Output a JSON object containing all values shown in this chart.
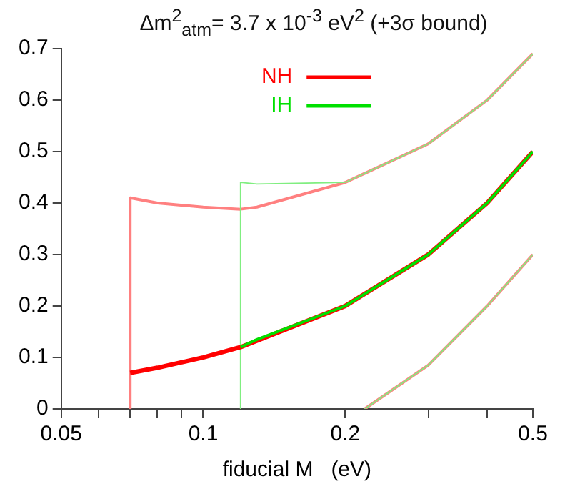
{
  "chart_data": {
    "type": "line",
    "title": "Δm$^{2}$$_{atm}$= 3.7 x 10$^{-3}$ eV$^{2}$   (+3σ bound)",
    "xlabel": "fiducial M   (eV)",
    "log": "x",
    "xlim": [
      0.05,
      0.5
    ],
    "xticks": [
      0.05,
      {
        "value": 0.06,
        "label": null
      },
      {
        "value": 0.07,
        "label": null
      },
      {
        "value": 0.08,
        "label": null
      },
      {
        "value": 0.09,
        "label": null
      },
      0.1,
      0.2,
      {
        "value": 0.3,
        "label": null
      },
      {
        "value": 0.4,
        "label": null
      },
      0.5
    ],
    "ylim": [
      0,
      0.7
    ],
    "yticks": [
      0,
      0.1,
      0.2,
      0.3,
      0.4,
      0.5,
      0.6,
      0.7
    ],
    "grid": false,
    "legend": "top",
    "series": [
      {
        "color": "#ff8080",
        "x": [
          0.07,
          0.07,
          0.08,
          0.1,
          0.12,
          0.13,
          0.2,
          0.3,
          0.4,
          0.5
        ],
        "values": [
          0,
          0.41,
          0.4,
          0.392,
          0.388,
          0.392,
          0.44,
          0.515,
          0.6,
          0.69
        ]
      },
      {
        "color": "#ff8080",
        "x": [
          0.22,
          0.3,
          0.4,
          0.5
        ],
        "values": [
          0,
          0.085,
          0.2,
          0.3
        ]
      },
      {
        "color": "#80ee80",
        "x": [
          0.12,
          0.12,
          0.13,
          0.2,
          0.3,
          0.4,
          0.5
        ],
        "values": [
          0,
          0.44,
          0.437,
          0.44,
          0.515,
          0.6,
          0.69
        ]
      },
      {
        "color": "#80ee80",
        "x": [
          0.22,
          0.3,
          0.4,
          0.5
        ],
        "values": [
          0,
          0.085,
          0.2,
          0.3
        ]
      },
      {
        "name": "NH",
        "color": "#ff0000",
        "x": [
          0.07,
          0.08,
          0.1,
          0.12,
          0.2,
          0.3,
          0.4,
          0.5
        ],
        "values": [
          0.07,
          0.08,
          0.1,
          0.12,
          0.2,
          0.3,
          0.4,
          0.5
        ]
      },
      {
        "name": "IH",
        "color": "#00e000",
        "x": [
          0.12,
          0.13,
          0.2,
          0.3,
          0.4,
          0.5
        ],
        "values": [
          0.12,
          0.135,
          0.2,
          0.3,
          0.4,
          0.5
        ]
      }
    ]
  }
}
